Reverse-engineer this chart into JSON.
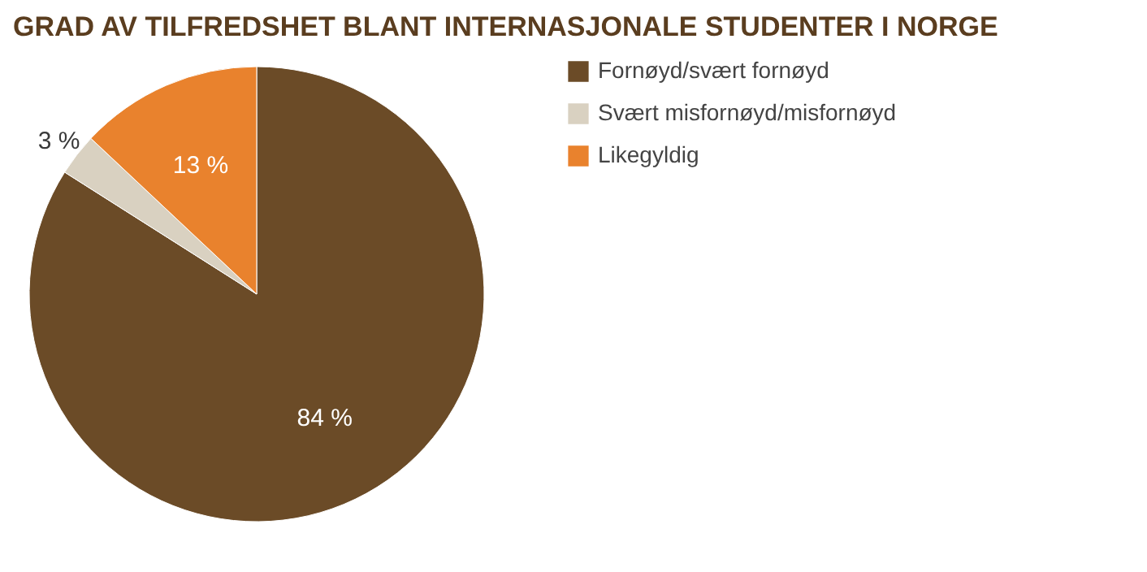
{
  "chart_data": {
    "type": "pie",
    "title": "GRAD AV TILFREDSHET BLANT INTERNASJONALE STUDENTER I NORGE",
    "categories": [
      "Fornøyd/svært fornøyd",
      "Svært misfornøyd/misfornøyd",
      "Likegyldig"
    ],
    "values": [
      84,
      3,
      13
    ],
    "colors": [
      "#6b4b27",
      "#d9d1c1",
      "#e9822d"
    ],
    "value_labels": [
      "84 %",
      "3 %",
      "13 %"
    ],
    "legend": "right"
  }
}
